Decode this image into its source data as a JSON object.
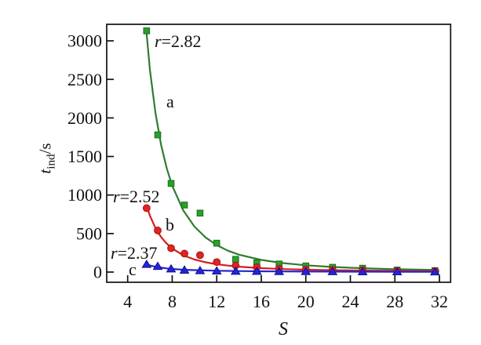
{
  "chart_data": {
    "type": "scatter",
    "title": "",
    "xlabel": "S",
    "ylabel_var": "t",
    "ylabel_sub": "ind",
    "ylabel_unit": "/s",
    "x_ticks": [
      4,
      8,
      12,
      16,
      20,
      24,
      28,
      32
    ],
    "y_ticks": [
      0,
      500,
      1000,
      1500,
      2000,
      2500,
      3000
    ],
    "xlim": [
      2.1,
      33.1
    ],
    "ylim": [
      -135,
      3215
    ],
    "grid": false,
    "legend_position": "none",
    "axis_color": "#111111",
    "x": [
      5.7,
      6.7,
      7.9,
      9.1,
      10.5,
      12.0,
      13.7,
      15.6,
      17.6,
      20.0,
      22.4,
      25.1,
      28.2,
      31.6
    ],
    "series": [
      {
        "name": "a",
        "r_value": "r=2.82",
        "marker": "square",
        "line_color": "#2e7d2e",
        "marker_fill": "#2aa02a",
        "marker_edge": "#1b6e1b",
        "values": [
          3130,
          1780,
          1150,
          870,
          765,
          375,
          165,
          120,
          105,
          80,
          62,
          50,
          26,
          18
        ],
        "fit": [
          [
            5.7,
            3100
          ],
          [
            6,
            2620
          ],
          [
            6.5,
            2060
          ],
          [
            7,
            1650
          ],
          [
            7.5,
            1350
          ],
          [
            8,
            1120
          ],
          [
            9,
            800
          ],
          [
            10,
            590
          ],
          [
            11,
            450
          ],
          [
            12,
            350
          ],
          [
            13,
            278
          ],
          [
            14,
            226
          ],
          [
            16,
            158
          ],
          [
            18,
            116
          ],
          [
            20,
            89
          ],
          [
            22,
            70
          ],
          [
            24,
            56
          ],
          [
            26,
            46
          ],
          [
            28,
            38
          ],
          [
            30,
            32
          ],
          [
            31.9,
            27
          ]
        ]
      },
      {
        "name": "b",
        "r_value": "r=2.52",
        "marker": "circle",
        "line_color": "#d41f1f",
        "marker_fill": "#e32222",
        "marker_edge": "#a01313",
        "values": [
          830,
          540,
          310,
          240,
          220,
          130,
          85,
          62,
          46,
          35,
          28,
          22,
          16,
          12
        ],
        "fit": [
          [
            5.7,
            860
          ],
          [
            6,
            730
          ],
          [
            6.5,
            570
          ],
          [
            7,
            455
          ],
          [
            7.5,
            370
          ],
          [
            8,
            305
          ],
          [
            9,
            218
          ],
          [
            10,
            163
          ],
          [
            11,
            127
          ],
          [
            12,
            102
          ],
          [
            13,
            84
          ],
          [
            14,
            70
          ],
          [
            16,
            51
          ],
          [
            18,
            39
          ],
          [
            20,
            31
          ],
          [
            22,
            25
          ],
          [
            24,
            21
          ],
          [
            26,
            18
          ],
          [
            28,
            16
          ],
          [
            30,
            14
          ],
          [
            31.9,
            12
          ]
        ]
      },
      {
        "name": "c",
        "r_value": "r=2.37",
        "marker": "triangle",
        "line_color": "#2626cc",
        "marker_fill": "#2424dd",
        "marker_edge": "#101088",
        "values": [
          100,
          75,
          42,
          26,
          19,
          15,
          12,
          10,
          8,
          7,
          6,
          5,
          5,
          4
        ],
        "fit": [
          [
            5.7,
            97
          ],
          [
            6,
            85
          ],
          [
            6.5,
            69
          ],
          [
            7,
            57
          ],
          [
            7.5,
            48
          ],
          [
            8,
            41
          ],
          [
            9,
            31
          ],
          [
            10,
            25
          ],
          [
            11,
            21
          ],
          [
            12,
            17
          ],
          [
            13,
            15
          ],
          [
            14,
            13
          ],
          [
            16,
            10
          ],
          [
            18,
            8
          ],
          [
            20,
            7
          ],
          [
            22,
            6
          ],
          [
            24,
            5
          ],
          [
            26,
            5
          ],
          [
            28,
            4
          ],
          [
            30,
            4
          ],
          [
            31.9,
            4
          ]
        ]
      }
    ],
    "annotations": [
      {
        "var": "r",
        "rest": "=2.82"
      },
      {
        "var": "a",
        "rest": ""
      },
      {
        "var": "r",
        "rest": "=2.52"
      },
      {
        "var": "b",
        "rest": ""
      },
      {
        "var": "r",
        "rest": "=2.37"
      },
      {
        "var": "c",
        "rest": ""
      }
    ]
  }
}
